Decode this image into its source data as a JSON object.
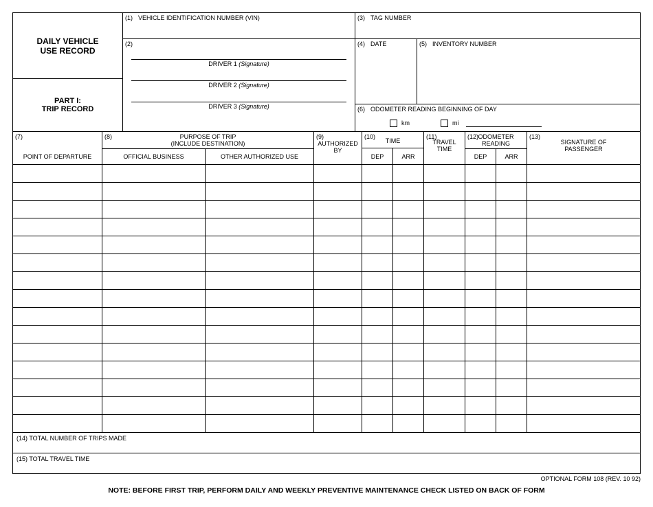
{
  "title1": "DAILY VEHICLE",
  "title2": "USE RECORD",
  "part1a": "PART I:",
  "part1b": "TRIP RECORD",
  "f1_num": "(1)",
  "f1_label": "VEHICLE IDENTIFICATION NUMBER (VIN)",
  "f2_num": "(2)",
  "sig1a": "DRIVER 1 ",
  "sig1b": "(Signature)",
  "sig2a": "DRIVER 2 ",
  "sig2b": "(Signature)",
  "sig3a": "DRIVER 3 ",
  "sig3b": "(Signature)",
  "f3_num": "(3)",
  "f3_label": "TAG NUMBER",
  "f4_num": "(4)",
  "f4_label": "DATE",
  "f5_num": "(5)",
  "f5_label": "INVENTORY NUMBER",
  "f6_num": "(6)",
  "f6_label": "ODOMETER READING BEGINNING OF DAY",
  "km": "km",
  "mi": "mi",
  "c7_num": "(7)",
  "c7_label": "POINT OF DEPARTURE",
  "c8_num": "(8)",
  "c8_label1": "PURPOSE OF TRIP",
  "c8_label2": "(INCLUDE DESTINATION)",
  "c8_sub1": "OFFICIAL BUSINESS",
  "c8_sub2": "OTHER AUTHORIZED USE",
  "c9_num": "(9)",
  "c9_label1": "AUTHORIZED",
  "c9_label2": "BY",
  "c10_num": "(10)",
  "c10_label": "TIME",
  "c11_num": "(11)",
  "c11_label1": "TRAVEL",
  "c11_label2": "TIME",
  "c12_num": "(12)",
  "c12_label1": "ODOMETER",
  "c12_label2": "READING",
  "c13_num": "(13)",
  "c13_label1": "SIGNATURE OF",
  "c13_label2": "PASSENGER",
  "dep": "DEP",
  "arr": "ARR",
  "f14": "(14)  TOTAL NUMBER OF TRIPS MADE",
  "f15": "(15)  TOTAL TRAVEL TIME",
  "form_id": "OPTIONAL FORM 108 (REV. 10 92)",
  "note": "NOTE:  BEFORE FIRST TRIP, PERFORM DAILY AND WEEKLY PREVENTIVE MAINTENANCE CHECK LISTED ON BACK OF FORM",
  "widths": {
    "c7": 130,
    "c8a": 150,
    "c8b": 158,
    "c9": 70,
    "c10a": 45,
    "c10b": 45,
    "c11": 60,
    "c12a": 45,
    "c12b": 45,
    "c13": 164
  },
  "num_rows": 15
}
